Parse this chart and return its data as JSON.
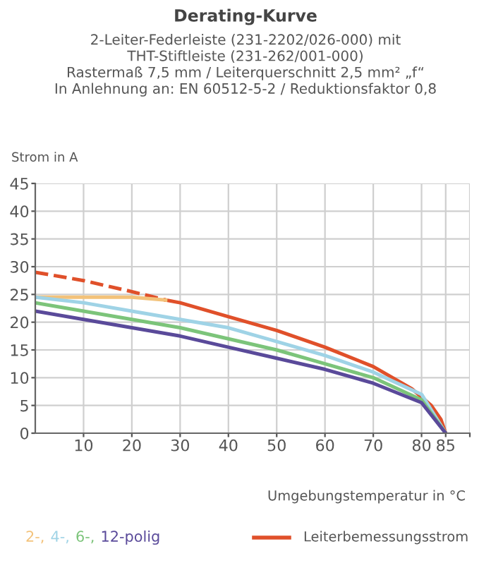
{
  "chart_data": {
    "type": "line",
    "title": "Derating-Kurve",
    "subtitle": "2-Leiter-Federleiste (231-2202/026-000) mit\nTHT-Stiftleiste (231-262/001-000)\nRastermaß 7,5 mm / Leiterquerschnitt 2,5 mm² „f“\nIn Anlehnung an: EN 60512-5-2 / Reduktionsfaktor 0,8",
    "ylabel": "Strom in A",
    "xlabel": "Umgebungstemperatur in °C",
    "xlim": [
      0,
      90
    ],
    "xticks": [
      10,
      20,
      30,
      40,
      50,
      60,
      70,
      80,
      85,
      {
        "value": 90,
        "label": null
      }
    ],
    "ylim": [
      0,
      45
    ],
    "yticks": [
      0,
      5,
      10,
      15,
      20,
      25,
      30,
      35,
      40,
      45
    ],
    "grid": true,
    "legend": "bottom",
    "marker": "none",
    "series": [
      {
        "color": "#e0502a",
        "line_style": "dashed",
        "x": [
          0,
          10,
          20,
          27
        ],
        "values": [
          29,
          27.5,
          25.5,
          24
        ]
      },
      {
        "name": "Leiterbemessungsstrom",
        "color": "#e0502a",
        "line_style": "solid",
        "x": [
          27,
          30,
          40,
          50,
          60,
          70,
          78,
          82,
          84,
          85
        ],
        "values": [
          24,
          23.5,
          21,
          18.5,
          15.5,
          12,
          8,
          5,
          2.5,
          0
        ]
      },
      {
        "name": "2-,",
        "color": "#f3c27a",
        "line_style": "solid",
        "x": [
          0,
          10,
          20,
          27
        ],
        "values": [
          24.5,
          24.5,
          24.5,
          24
        ]
      },
      {
        "name": "4-,",
        "color": "#9fd3e6",
        "line_style": "solid",
        "x": [
          0,
          10,
          20,
          30,
          40,
          50,
          60,
          70,
          80,
          85
        ],
        "values": [
          24.5,
          23.5,
          22,
          20.5,
          19,
          16.5,
          14,
          11,
          7,
          0
        ]
      },
      {
        "name": "6-,",
        "color": "#7cc47a",
        "line_style": "solid",
        "x": [
          0,
          10,
          20,
          30,
          40,
          50,
          60,
          70,
          80,
          85
        ],
        "values": [
          23.5,
          22,
          20.5,
          19,
          17,
          15,
          12.5,
          10,
          6,
          0
        ]
      },
      {
        "name": "12-polig",
        "color": "#5a4a9a",
        "line_style": "solid",
        "x": [
          0,
          10,
          20,
          30,
          40,
          50,
          60,
          70,
          80,
          85
        ],
        "values": [
          22,
          20.5,
          19,
          17.5,
          15.5,
          13.5,
          11.5,
          9,
          5.5,
          0
        ]
      }
    ]
  }
}
